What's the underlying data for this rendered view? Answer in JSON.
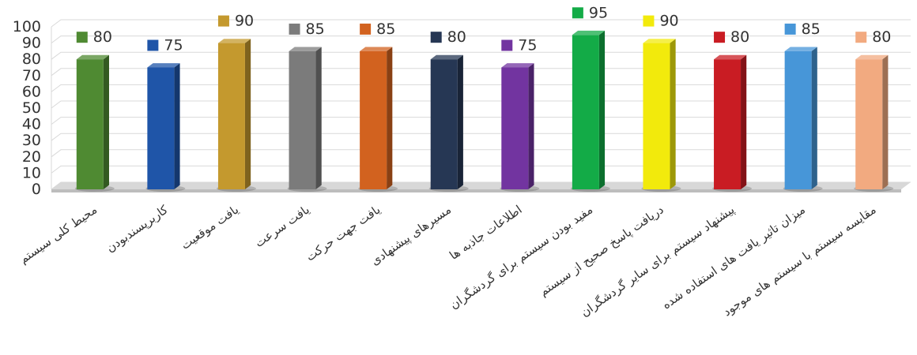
{
  "chart_data": {
    "type": "bar",
    "title": "",
    "xlabel": "",
    "ylabel": "",
    "ylim": [
      0,
      100
    ],
    "yticks": [
      0,
      10,
      20,
      30,
      40,
      50,
      60,
      70,
      80,
      90,
      100
    ],
    "grid": true,
    "three_d": true,
    "categories": [
      "محیط کلی سیستم",
      "کاربرپسندبودن",
      "یافت موقعیت",
      "یافت سرعت",
      "یافت جهت حرکت",
      "مسیرهای پیشنهادی",
      "اطلاعات جاذبه ها",
      "مفید بودن سیستم برای گردشگران",
      "دریافت پاسخ صحیح از سیستم",
      "پیشنهاد سیستم برای سایر گردشگران",
      "میزان تاثیر یافت های استفاده شده",
      "مقایسه سیستم با سیستم های موجود"
    ],
    "values": [
      80,
      75,
      90,
      85,
      85,
      80,
      75,
      95,
      90,
      80,
      85,
      80
    ],
    "colors": [
      "#4f8a32",
      "#1f55a8",
      "#c4992e",
      "#7b7b7b",
      "#d2621f",
      "#263754",
      "#7234a0",
      "#13ab47",
      "#f2ea0c",
      "#c91c23",
      "#4796d8",
      "#f2aa80"
    ]
  }
}
